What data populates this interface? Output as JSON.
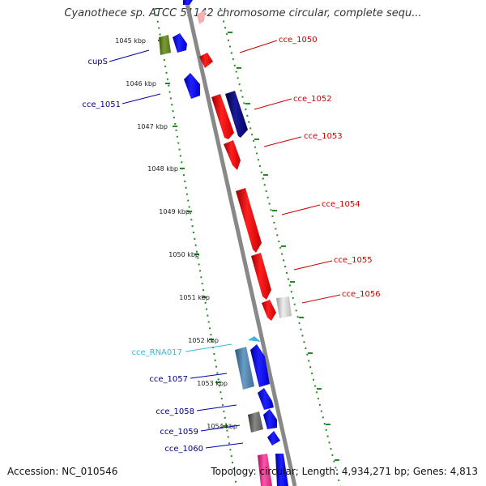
{
  "header": {
    "title": "Cyanothece sp. ATCC 51142 chromosome circular, complete sequ..."
  },
  "footer": {
    "accession": "Accession: NC_010546",
    "stats": "Topology: circular; Length: 4,934,271 bp; Genes: 4,813"
  },
  "axis": {
    "ticks": [
      "1045 kbp",
      "1046 kbp",
      "1047 kbp",
      "1048 kbp",
      "1049 kbp",
      "1050 kbp",
      "1051 kbp",
      "1052 kbp",
      "1053 kbp",
      "1054 kbp"
    ]
  },
  "genes": {
    "left": [
      {
        "name": "cupS",
        "color": "#00008b"
      },
      {
        "name": "cce_1051",
        "color": "#00008b"
      },
      {
        "name": "cce_RNA017",
        "color": "#33bbdd"
      },
      {
        "name": "cce_1057",
        "color": "#00008b"
      },
      {
        "name": "cce_1058",
        "color": "#00008b"
      },
      {
        "name": "cce_1059",
        "color": "#00008b"
      },
      {
        "name": "cce_1060",
        "color": "#00008b"
      }
    ],
    "right": [
      {
        "name": "cce_1050",
        "color": "#cc0000"
      },
      {
        "name": "cce_1052",
        "color": "#cc0000"
      },
      {
        "name": "cce_1053",
        "color": "#cc0000"
      },
      {
        "name": "cce_1054",
        "color": "#cc0000"
      },
      {
        "name": "cce_1055",
        "color": "#cc0000"
      },
      {
        "name": "cce_1056",
        "color": "#cc0000"
      }
    ]
  },
  "colors": {
    "forward_gene": "#ff0000",
    "reverse_gene": "#0000ff",
    "rna_gene": "#4682b4",
    "backbone": "#888888",
    "dotted_track": "#228b22"
  }
}
